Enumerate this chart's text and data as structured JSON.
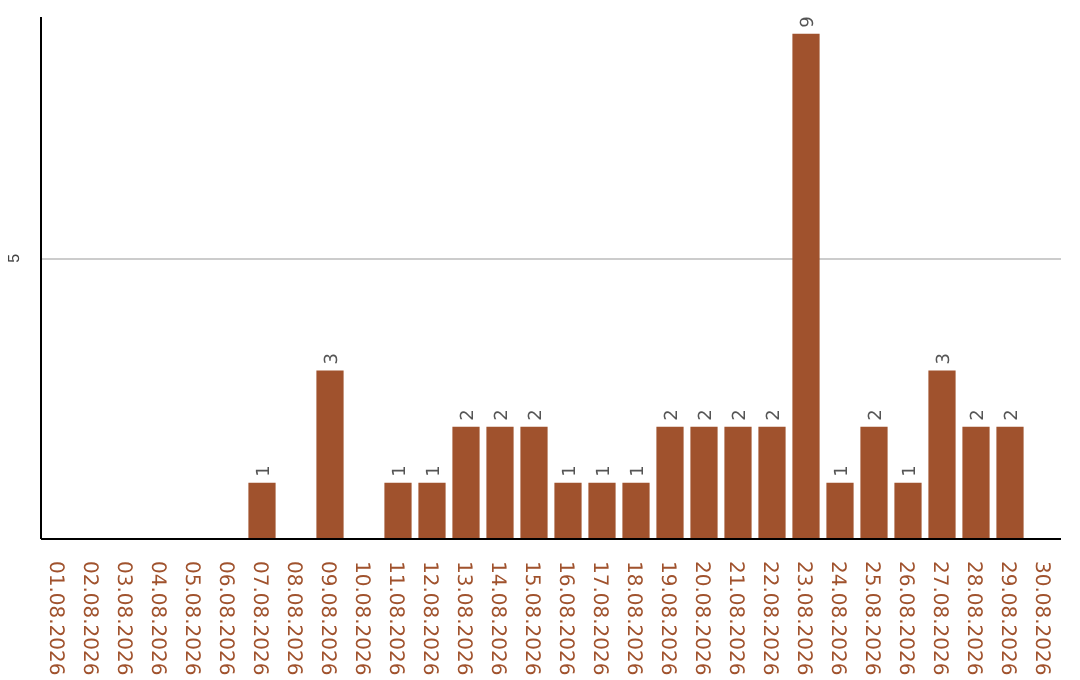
{
  "chart_data": {
    "type": "bar",
    "categories": [
      "01.08.2026",
      "02.08.2026",
      "03.08.2026",
      "04.08.2026",
      "05.08.2026",
      "06.08.2026",
      "07.08.2026",
      "08.08.2026",
      "09.08.2026",
      "10.08.2026",
      "11.08.2026",
      "12.08.2026",
      "13.08.2026",
      "14.08.2026",
      "15.08.2026",
      "16.08.2026",
      "17.08.2026",
      "18.08.2026",
      "19.08.2026",
      "20.08.2026",
      "21.08.2026",
      "22.08.2026",
      "23.08.2026",
      "24.08.2026",
      "25.08.2026",
      "26.08.2026",
      "27.08.2026",
      "28.08.2026",
      "29.08.2026",
      "30.08.2026"
    ],
    "values": [
      0,
      0,
      0,
      0,
      0,
      0,
      1,
      0,
      3,
      0,
      1,
      1,
      2,
      2,
      2,
      1,
      1,
      1,
      2,
      2,
      2,
      2,
      9,
      1,
      2,
      1,
      3,
      2,
      2,
      0
    ],
    "value_labels": [
      null,
      null,
      null,
      null,
      null,
      null,
      "1",
      null,
      "3",
      null,
      "1",
      "1",
      "2",
      "2",
      "2",
      "1",
      "1",
      "1",
      "2",
      "2",
      "2",
      "2",
      "9",
      "1",
      "2",
      "1",
      "3",
      "2",
      "2",
      null
    ],
    "color": "#a0522d",
    "ylim": [
      0,
      9.3
    ],
    "yticks": [
      5
    ],
    "grid": "y"
  }
}
